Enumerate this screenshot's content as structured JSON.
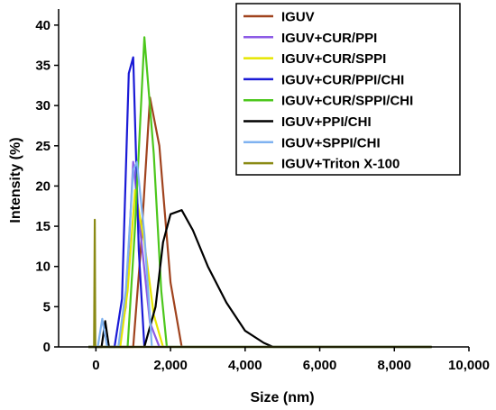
{
  "chart_data": {
    "type": "line",
    "xlabel": "Size (nm)",
    "ylabel": "Intensity (%)",
    "xlim": [
      -1000,
      10000
    ],
    "ylim": [
      0,
      42
    ],
    "xticks": [
      0,
      2000,
      4000,
      6000,
      8000,
      10000
    ],
    "xtick_labels": [
      "0",
      "2,000",
      "4,000",
      "6,000",
      "8,000",
      "10,000"
    ],
    "yticks": [
      0,
      5,
      10,
      15,
      20,
      25,
      30,
      35,
      40
    ],
    "ytick_labels": [
      "0",
      "5",
      "10",
      "15",
      "20",
      "25",
      "30",
      "35",
      "40"
    ],
    "grid": false,
    "legend_position": "top-right",
    "series": [
      {
        "name": "IGUV",
        "color": "#a0431e",
        "x": [
          -200,
          1000,
          1200,
          1450,
          1700,
          2000,
          2300,
          9000
        ],
        "y": [
          0,
          0,
          12,
          31,
          25,
          8,
          0,
          0
        ]
      },
      {
        "name": "IGUV+CUR/PPI",
        "color": "#8d5ce6",
        "x": [
          -200,
          600,
          800,
          1000,
          1200,
          1450,
          1700,
          9000
        ],
        "y": [
          0,
          0,
          5,
          23,
          14,
          3,
          0,
          0
        ]
      },
      {
        "name": "IGUV+CUR/SPPI",
        "color": "#e6e600",
        "x": [
          -200,
          650,
          850,
          1050,
          1300,
          1550,
          1800,
          9000
        ],
        "y": [
          0,
          0,
          7,
          19.5,
          13,
          4,
          0,
          0
        ]
      },
      {
        "name": "IGUV+CUR/PPI/CHI",
        "color": "#1a1ad6",
        "x": [
          -200,
          500,
          700,
          880,
          1000,
          1150,
          1300,
          9000
        ],
        "y": [
          0,
          0,
          6,
          34,
          36,
          12,
          0,
          0
        ]
      },
      {
        "name": "IGUV+CUR/SPPI/CHI",
        "color": "#4cc71c",
        "x": [
          -200,
          850,
          1050,
          1300,
          1550,
          1750,
          1900,
          9000
        ],
        "y": [
          0,
          0,
          15,
          38.5,
          24,
          7,
          0,
          0
        ]
      },
      {
        "name": "IGUV+PPI/CHI",
        "color": "#000000",
        "x": [
          -200,
          150,
          250,
          350,
          1300,
          1600,
          1800,
          2000,
          2300,
          2600,
          3000,
          3500,
          4000,
          4500,
          4750,
          9000
        ],
        "y": [
          0,
          0,
          3.2,
          0,
          0,
          5,
          13,
          16.5,
          17,
          14.5,
          10,
          5.5,
          2,
          0.5,
          0,
          0
        ]
      },
      {
        "name": "IGUV+SPPI/CHI",
        "color": "#7fb2f0",
        "x": [
          -200,
          50,
          170,
          300,
          600,
          800,
          1000,
          1100,
          1300,
          1500,
          9000
        ],
        "y": [
          0,
          0,
          3.5,
          0,
          0,
          7,
          22,
          23,
          14,
          0,
          0
        ]
      },
      {
        "name": "IGUV+Triton X-100",
        "color": "#8a8a14",
        "x": [
          -200,
          -50,
          -30,
          -15,
          0,
          9000
        ],
        "y": [
          0,
          0,
          15.8,
          0,
          0,
          0
        ]
      }
    ]
  }
}
